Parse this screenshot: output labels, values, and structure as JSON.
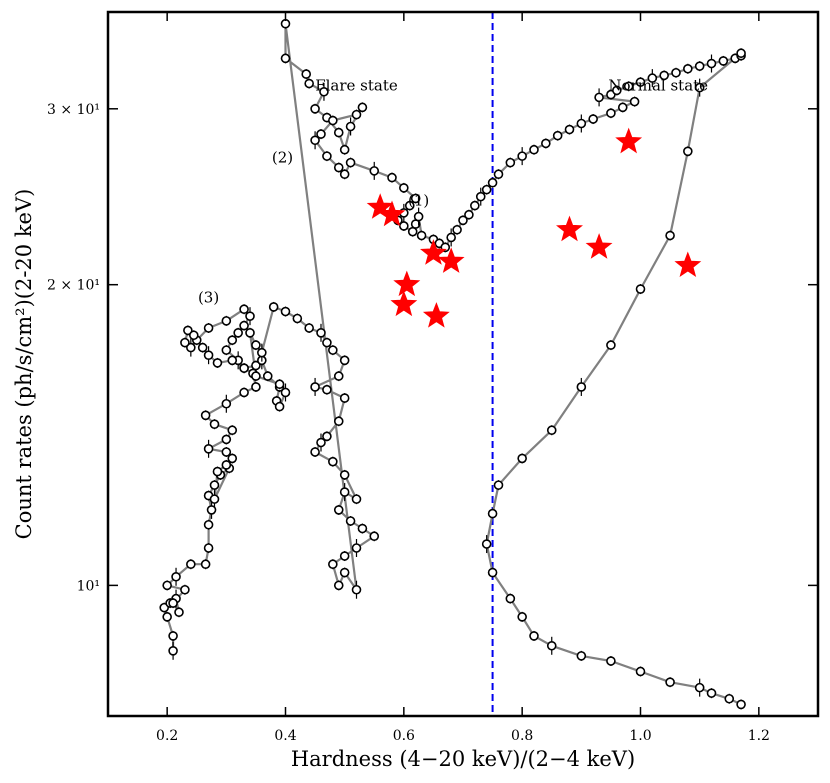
{
  "chart_data": {
    "type": "scatter",
    "title": "",
    "xlabel": "Hardness (4−20 keV)/(2−4 keV)",
    "ylabel": "Count rates (ph/s/cm²)(2-20 keV)",
    "xlim": [
      0.1,
      1.3
    ],
    "ylim": [
      7.4,
      37.5
    ],
    "yscale": "log",
    "grid": false,
    "x_ticks": [
      0.2,
      0.4,
      0.6,
      0.8,
      1.0,
      1.2
    ],
    "x_tick_labels": [
      "0.2",
      "0.4",
      "0.6",
      "0.8",
      "1.0",
      "1.2"
    ],
    "y_ticks": [
      10,
      20,
      30
    ],
    "y_tick_labels": [
      "10¹",
      "2 × 10¹",
      "3 × 10¹"
    ],
    "divider_x": 0.75,
    "divider_color": "#0000ee",
    "line_color": "#808080",
    "marker_color": "#000000",
    "star_color": "#ff0000",
    "annotations": [
      {
        "text": "Flare state",
        "x": 0.52,
        "y": 31.3
      },
      {
        "text": "Normal state",
        "x": 1.03,
        "y": 31.3
      },
      {
        "text": "(1)",
        "x": 0.625,
        "y": 24.0
      },
      {
        "text": "(2)",
        "x": 0.395,
        "y": 26.5
      },
      {
        "text": "(3)",
        "x": 0.27,
        "y": 19.2
      }
    ],
    "series": [
      {
        "name": "observations",
        "points": [
          [
            0.21,
            8.6
          ],
          [
            0.21,
            8.9
          ],
          [
            0.2,
            9.3
          ],
          [
            0.195,
            9.5
          ],
          [
            0.205,
            9.6
          ],
          [
            0.215,
            9.7
          ],
          [
            0.22,
            9.4
          ],
          [
            0.21,
            9.6
          ],
          [
            0.23,
            9.9
          ],
          [
            0.2,
            10.0
          ],
          [
            0.215,
            10.2
          ],
          [
            0.24,
            10.5
          ],
          [
            0.265,
            10.5
          ],
          [
            0.27,
            10.9
          ],
          [
            0.27,
            11.5
          ],
          [
            0.275,
            11.9
          ],
          [
            0.27,
            12.3
          ],
          [
            0.28,
            12.6
          ],
          [
            0.29,
            12.9
          ],
          [
            0.305,
            13.1
          ],
          [
            0.28,
            12.2
          ],
          [
            0.285,
            13.0
          ],
          [
            0.3,
            13.2
          ],
          [
            0.31,
            13.4
          ],
          [
            0.3,
            13.6
          ],
          [
            0.27,
            13.7
          ],
          [
            0.3,
            14.0
          ],
          [
            0.31,
            14.3
          ],
          [
            0.28,
            14.5
          ],
          [
            0.265,
            14.8
          ],
          [
            0.3,
            15.2
          ],
          [
            0.33,
            15.6
          ],
          [
            0.35,
            15.8
          ],
          [
            0.345,
            16.3
          ],
          [
            0.33,
            16.5
          ],
          [
            0.32,
            16.8
          ],
          [
            0.3,
            17.2
          ],
          [
            0.31,
            17.6
          ],
          [
            0.32,
            17.9
          ],
          [
            0.33,
            18.2
          ],
          [
            0.34,
            18.6
          ],
          [
            0.33,
            18.9
          ],
          [
            0.3,
            18.4
          ],
          [
            0.27,
            18.1
          ],
          [
            0.25,
            17.6
          ],
          [
            0.24,
            17.3
          ],
          [
            0.23,
            17.5
          ],
          [
            0.235,
            18.0
          ],
          [
            0.245,
            17.8
          ],
          [
            0.26,
            17.3
          ],
          [
            0.27,
            17.0
          ],
          [
            0.285,
            16.7
          ],
          [
            0.31,
            16.8
          ],
          [
            0.33,
            16.5
          ],
          [
            0.35,
            16.6
          ],
          [
            0.36,
            16.8
          ],
          [
            0.37,
            16.2
          ],
          [
            0.39,
            15.8
          ],
          [
            0.385,
            15.3
          ],
          [
            0.39,
            15.1
          ],
          [
            0.4,
            15.6
          ],
          [
            0.39,
            15.9
          ],
          [
            0.35,
            16.2
          ],
          [
            0.34,
            17.9
          ],
          [
            0.35,
            17.4
          ],
          [
            0.36,
            17.1
          ],
          [
            0.38,
            19.0
          ],
          [
            0.4,
            18.8
          ],
          [
            0.42,
            18.5
          ],
          [
            0.44,
            18.1
          ],
          [
            0.46,
            17.9
          ],
          [
            0.47,
            17.5
          ],
          [
            0.48,
            17.2
          ],
          [
            0.5,
            16.8
          ],
          [
            0.49,
            16.2
          ],
          [
            0.45,
            15.8
          ],
          [
            0.47,
            15.7
          ],
          [
            0.5,
            15.4
          ],
          [
            0.49,
            14.6
          ],
          [
            0.47,
            14.1
          ],
          [
            0.46,
            13.9
          ],
          [
            0.45,
            13.6
          ],
          [
            0.48,
            13.3
          ],
          [
            0.5,
            12.9
          ],
          [
            0.52,
            12.2
          ],
          [
            0.5,
            12.4
          ],
          [
            0.49,
            11.9
          ],
          [
            0.51,
            11.6
          ],
          [
            0.53,
            11.4
          ],
          [
            0.55,
            11.2
          ],
          [
            0.52,
            10.9
          ],
          [
            0.5,
            10.7
          ],
          [
            0.48,
            10.5
          ],
          [
            0.49,
            10.0
          ],
          [
            0.5,
            10.3
          ],
          [
            0.52,
            9.9
          ],
          [
            0.4,
            36.5
          ],
          [
            0.4,
            33.7
          ],
          [
            0.435,
            32.5
          ],
          [
            0.44,
            31.8
          ],
          [
            0.465,
            31.2
          ],
          [
            0.45,
            30.0
          ],
          [
            0.47,
            29.4
          ],
          [
            0.49,
            28.4
          ],
          [
            0.5,
            27.3
          ],
          [
            0.51,
            28.8
          ],
          [
            0.53,
            30.1
          ],
          [
            0.52,
            29.6
          ],
          [
            0.48,
            29.2
          ],
          [
            0.46,
            28.3
          ],
          [
            0.45,
            27.9
          ],
          [
            0.47,
            26.9
          ],
          [
            0.49,
            26.2
          ],
          [
            0.5,
            25.8
          ],
          [
            0.51,
            26.5
          ],
          [
            0.55,
            26.0
          ],
          [
            0.58,
            25.6
          ],
          [
            0.6,
            25.0
          ],
          [
            0.62,
            24.4
          ],
          [
            0.61,
            24.0
          ],
          [
            0.6,
            23.6
          ],
          [
            0.59,
            23.2
          ],
          [
            0.6,
            22.9
          ],
          [
            0.615,
            22.6
          ],
          [
            0.62,
            23.0
          ],
          [
            0.625,
            23.4
          ],
          [
            0.63,
            22.4
          ],
          [
            0.65,
            22.2
          ],
          [
            0.66,
            22.0
          ],
          [
            0.67,
            21.8
          ],
          [
            0.68,
            22.3
          ],
          [
            0.69,
            22.7
          ],
          [
            0.7,
            23.2
          ],
          [
            0.71,
            23.5
          ],
          [
            0.72,
            24.0
          ],
          [
            0.73,
            24.5
          ],
          [
            0.74,
            24.9
          ],
          [
            0.75,
            25.3
          ],
          [
            0.76,
            25.8
          ],
          [
            0.78,
            26.5
          ],
          [
            0.8,
            26.9
          ],
          [
            0.82,
            27.3
          ],
          [
            0.84,
            27.7
          ],
          [
            0.86,
            28.2
          ],
          [
            0.88,
            28.6
          ],
          [
            0.9,
            29.0
          ],
          [
            0.92,
            29.3
          ],
          [
            0.95,
            29.7
          ],
          [
            0.97,
            30.1
          ],
          [
            0.99,
            30.5
          ],
          [
            0.93,
            30.8
          ],
          [
            0.95,
            31.0
          ],
          [
            0.96,
            31.3
          ],
          [
            0.98,
            31.6
          ],
          [
            1.0,
            31.9
          ],
          [
            1.02,
            32.2
          ],
          [
            1.04,
            32.4
          ],
          [
            1.06,
            32.6
          ],
          [
            1.08,
            32.9
          ],
          [
            1.1,
            33.1
          ],
          [
            1.12,
            33.3
          ],
          [
            1.14,
            33.5
          ],
          [
            1.16,
            33.7
          ],
          [
            1.17,
            33.9
          ],
          [
            1.17,
            34.1
          ],
          [
            1.1,
            31.5
          ],
          [
            1.08,
            27.2
          ],
          [
            1.05,
            22.4
          ],
          [
            1.0,
            19.8
          ],
          [
            0.95,
            17.4
          ],
          [
            0.9,
            15.8
          ],
          [
            0.85,
            14.3
          ],
          [
            0.8,
            13.4
          ],
          [
            0.76,
            12.6
          ],
          [
            0.75,
            11.8
          ],
          [
            0.74,
            11.0
          ],
          [
            0.75,
            10.3
          ],
          [
            0.78,
            9.7
          ],
          [
            0.8,
            9.3
          ],
          [
            0.82,
            8.9
          ],
          [
            0.85,
            8.7
          ],
          [
            0.9,
            8.5
          ],
          [
            0.95,
            8.4
          ],
          [
            1.0,
            8.2
          ],
          [
            1.05,
            8.0
          ],
          [
            1.1,
            7.9
          ],
          [
            1.12,
            7.8
          ],
          [
            1.15,
            7.7
          ],
          [
            1.17,
            7.6
          ]
        ]
      },
      {
        "name": "stars",
        "points": [
          [
            0.56,
            23.9
          ],
          [
            0.58,
            23.5
          ],
          [
            0.605,
            20.0
          ],
          [
            0.6,
            19.1
          ],
          [
            0.655,
            18.6
          ],
          [
            0.65,
            21.5
          ],
          [
            0.68,
            21.1
          ],
          [
            0.88,
            22.7
          ],
          [
            0.93,
            21.8
          ],
          [
            0.98,
            27.8
          ],
          [
            1.08,
            20.9
          ]
        ]
      }
    ]
  }
}
